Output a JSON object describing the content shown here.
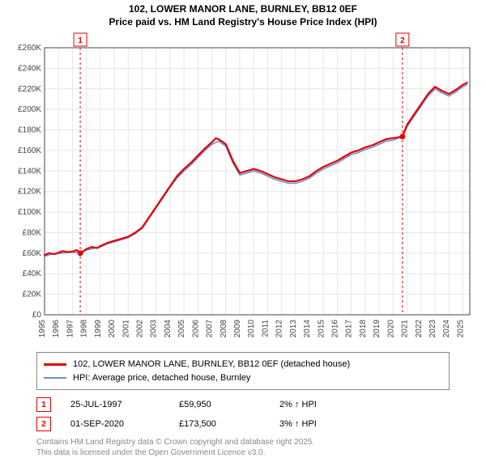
{
  "title_line1": "102, LOWER MANOR LANE, BURNLEY, BB12 0EF",
  "title_line2": "Price paid vs. HM Land Registry's House Price Index (HPI)",
  "chart": {
    "type": "line",
    "background_color": "#ffffff",
    "plot_bg": "#ffffff",
    "grid_color": "#e6e6e6",
    "axis_color": "#444444",
    "xlim": [
      1995,
      2025.5
    ],
    "ylim": [
      0,
      260000
    ],
    "ytick_step": 20000,
    "yticks": [
      "£0",
      "£20K",
      "£40K",
      "£60K",
      "£80K",
      "£100K",
      "£120K",
      "£140K",
      "£160K",
      "£180K",
      "£200K",
      "£220K",
      "£240K",
      "£260K"
    ],
    "xticks": [
      "1995",
      "1996",
      "1997",
      "1998",
      "1999",
      "2000",
      "2001",
      "2002",
      "2003",
      "2004",
      "2005",
      "2006",
      "2007",
      "2008",
      "2009",
      "2010",
      "2011",
      "2012",
      "2013",
      "2014",
      "2015",
      "2016",
      "2017",
      "2018",
      "2019",
      "2020",
      "2021",
      "2022",
      "2023",
      "2024",
      "2025"
    ],
    "xlabel_fontsize": 10,
    "ylabel_fontsize": 10,
    "series": [
      {
        "name": "price_paid",
        "color": "#e30000",
        "width": 2.2,
        "points": [
          [
            1995,
            58000
          ],
          [
            1995.3,
            60000
          ],
          [
            1995.7,
            59000
          ],
          [
            1996,
            60500
          ],
          [
            1996.3,
            62000
          ],
          [
            1996.7,
            61000
          ],
          [
            1997,
            61500
          ],
          [
            1997.3,
            63000
          ],
          [
            1997.56,
            59950
          ],
          [
            1997.8,
            62000
          ],
          [
            1998,
            64000
          ],
          [
            1998.4,
            66000
          ],
          [
            1998.8,
            65000
          ],
          [
            1999,
            67000
          ],
          [
            1999.5,
            70000
          ],
          [
            2000,
            72000
          ],
          [
            2000.5,
            74000
          ],
          [
            2001,
            76000
          ],
          [
            2001.5,
            80000
          ],
          [
            2002,
            85000
          ],
          [
            2002.5,
            95000
          ],
          [
            2003,
            105000
          ],
          [
            2003.5,
            115000
          ],
          [
            2004,
            125000
          ],
          [
            2004.5,
            135000
          ],
          [
            2005,
            142000
          ],
          [
            2005.5,
            148000
          ],
          [
            2006,
            155000
          ],
          [
            2006.5,
            162000
          ],
          [
            2007,
            168000
          ],
          [
            2007.3,
            172000
          ],
          [
            2007.6,
            170000
          ],
          [
            2008,
            166000
          ],
          [
            2008.5,
            150000
          ],
          [
            2009,
            138000
          ],
          [
            2009.5,
            140000
          ],
          [
            2010,
            142000
          ],
          [
            2010.5,
            140000
          ],
          [
            2011,
            137000
          ],
          [
            2011.5,
            134000
          ],
          [
            2012,
            132000
          ],
          [
            2012.5,
            130000
          ],
          [
            2013,
            130000
          ],
          [
            2013.5,
            132000
          ],
          [
            2014,
            135000
          ],
          [
            2014.5,
            140000
          ],
          [
            2015,
            144000
          ],
          [
            2015.5,
            147000
          ],
          [
            2016,
            150000
          ],
          [
            2016.5,
            154000
          ],
          [
            2017,
            158000
          ],
          [
            2017.5,
            160000
          ],
          [
            2018,
            163000
          ],
          [
            2018.5,
            165000
          ],
          [
            2019,
            168000
          ],
          [
            2019.5,
            171000
          ],
          [
            2020,
            172000
          ],
          [
            2020.67,
            173500
          ],
          [
            2021,
            185000
          ],
          [
            2021.5,
            195000
          ],
          [
            2022,
            205000
          ],
          [
            2022.5,
            215000
          ],
          [
            2023,
            222000
          ],
          [
            2023.5,
            218000
          ],
          [
            2024,
            215000
          ],
          [
            2024.5,
            219000
          ],
          [
            2025,
            224000
          ],
          [
            2025.3,
            226000
          ]
        ]
      },
      {
        "name": "hpi",
        "color": "#6a8fd8",
        "width": 1.6,
        "points": [
          [
            1995,
            57000
          ],
          [
            1995.5,
            59000
          ],
          [
            1996,
            59500
          ],
          [
            1996.5,
            60500
          ],
          [
            1997,
            61000
          ],
          [
            1997.56,
            59950
          ],
          [
            1998,
            63000
          ],
          [
            1998.5,
            64500
          ],
          [
            1999,
            66000
          ],
          [
            1999.5,
            69000
          ],
          [
            2000,
            71000
          ],
          [
            2000.5,
            73000
          ],
          [
            2001,
            75000
          ],
          [
            2001.5,
            79000
          ],
          [
            2002,
            84000
          ],
          [
            2002.5,
            94000
          ],
          [
            2003,
            104000
          ],
          [
            2003.5,
            114000
          ],
          [
            2004,
            124000
          ],
          [
            2004.5,
            133000
          ],
          [
            2005,
            140000
          ],
          [
            2005.5,
            146000
          ],
          [
            2006,
            153000
          ],
          [
            2006.5,
            160000
          ],
          [
            2007,
            166000
          ],
          [
            2007.5,
            169000
          ],
          [
            2008,
            164000
          ],
          [
            2008.5,
            148000
          ],
          [
            2009,
            136000
          ],
          [
            2009.5,
            138000
          ],
          [
            2010,
            140000
          ],
          [
            2010.5,
            138000
          ],
          [
            2011,
            135000
          ],
          [
            2011.5,
            132000
          ],
          [
            2012,
            130000
          ],
          [
            2012.5,
            128000
          ],
          [
            2013,
            128000
          ],
          [
            2013.5,
            130000
          ],
          [
            2014,
            133000
          ],
          [
            2014.5,
            138000
          ],
          [
            2015,
            142000
          ],
          [
            2015.5,
            145000
          ],
          [
            2016,
            148000
          ],
          [
            2016.5,
            152000
          ],
          [
            2017,
            156000
          ],
          [
            2017.5,
            158000
          ],
          [
            2018,
            161000
          ],
          [
            2018.5,
            163000
          ],
          [
            2019,
            166000
          ],
          [
            2019.5,
            169000
          ],
          [
            2020,
            170000
          ],
          [
            2020.67,
            173500
          ],
          [
            2021,
            183000
          ],
          [
            2021.5,
            193000
          ],
          [
            2022,
            203000
          ],
          [
            2022.5,
            213000
          ],
          [
            2023,
            220000
          ],
          [
            2023.5,
            216000
          ],
          [
            2024,
            213000
          ],
          [
            2024.5,
            217000
          ],
          [
            2025,
            222000
          ],
          [
            2025.3,
            224000
          ]
        ]
      }
    ],
    "markers": [
      {
        "n": "1",
        "year": 1997.56,
        "price": 59950
      },
      {
        "n": "2",
        "year": 2020.67,
        "price": 173500
      }
    ],
    "marker_line_color": "#e30000",
    "marker_line_dash": "3,3",
    "marker_box_border": "#e30000",
    "marker_box_text": "#e30000",
    "marker_dot_color": "#e30000"
  },
  "legend": {
    "series1_label": "102, LOWER MANOR LANE, BURNLEY, BB12 0EF (detached house)",
    "series1_color": "#e30000",
    "series2_label": "HPI: Average price, detached house, Burnley",
    "series2_color": "#6a8fd8"
  },
  "marker_table": [
    {
      "n": "1",
      "date": "25-JUL-1997",
      "price": "£59,950",
      "pct": "2% ↑ HPI"
    },
    {
      "n": "2",
      "date": "01-SEP-2020",
      "price": "£173,500",
      "pct": "3% ↑ HPI"
    }
  ],
  "license_line1": "Contains HM Land Registry data © Crown copyright and database right 2025.",
  "license_line2": "This data is licensed under the Open Government Licence v3.0."
}
